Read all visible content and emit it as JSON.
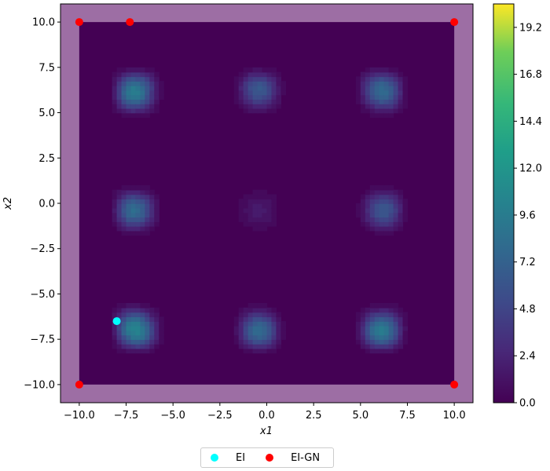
{
  "chart_data": {
    "type": "heatmap",
    "title": "",
    "xlabel": "x1",
    "ylabel": "x2",
    "xlim": [
      -11,
      11
    ],
    "ylim": [
      -11,
      11
    ],
    "inner_region": {
      "x": [
        -10,
        10
      ],
      "y": [
        -10,
        10
      ]
    },
    "grid": false,
    "x_ticks": [
      -10.0,
      -7.5,
      -5.0,
      -2.5,
      0.0,
      2.5,
      5.0,
      7.5,
      10.0
    ],
    "x_tick_labels": [
      "−10.0",
      "−7.5",
      "−5.0",
      "−2.5",
      "0.0",
      "2.5",
      "5.0",
      "7.5",
      "10.0"
    ],
    "y_ticks": [
      10.0,
      7.5,
      5.0,
      2.5,
      0.0,
      -2.5,
      -5.0,
      -7.5,
      -10.0
    ],
    "y_tick_labels": [
      "10.0",
      "7.5",
      "5.0",
      "2.5",
      "0.0",
      "−2.5",
      "−5.0",
      "−7.5",
      "−10.0"
    ],
    "colorbar": {
      "min": 0.0,
      "max": 20.4,
      "levels": 34,
      "ticks": [
        0.0,
        2.4,
        4.8,
        7.2,
        9.6,
        12.0,
        14.4,
        16.8,
        19.2
      ],
      "tick_labels": [
        "0.0",
        "2.4",
        "4.8",
        "7.2",
        "9.6",
        "12.0",
        "14.4",
        "16.8",
        "19.2"
      ],
      "colormap": "viridis"
    },
    "series": [
      {
        "name": "EI",
        "color": "#00ffff",
        "points": [
          [
            -8.0,
            -6.5
          ]
        ]
      },
      {
        "name": "EI-GN",
        "color": "#ff0000",
        "points": [
          [
            -10,
            10
          ],
          [
            -7.3,
            10
          ],
          [
            10,
            10
          ],
          [
            -10,
            -10
          ],
          [
            10,
            -10
          ]
        ]
      }
    ],
    "legend_position": "bottom-center"
  }
}
